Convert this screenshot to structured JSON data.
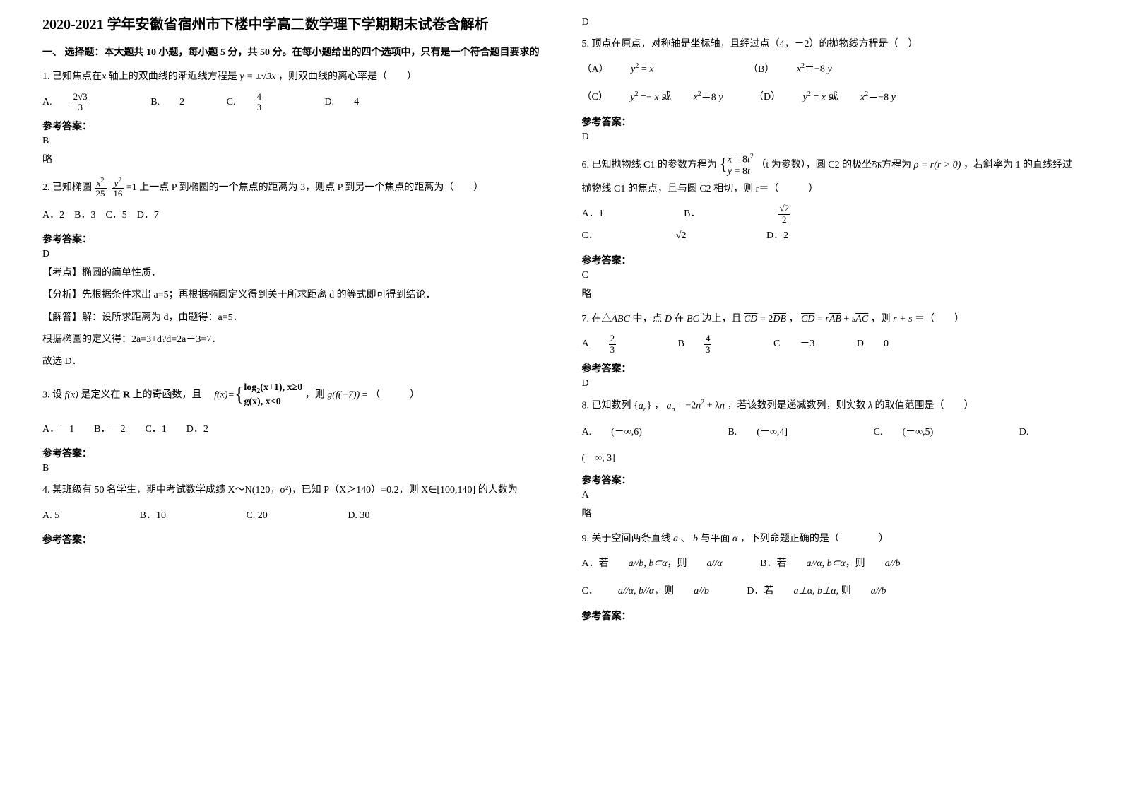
{
  "title": "2020-2021 学年安徽省宿州市下楼中学高二数学理下学期期末试卷含解析",
  "section1_header": "一、 选择题：本大题共 10 小题，每小题 5 分，共 50 分。在每小题给出的四个选项中，只有是一个符合题目要求的",
  "q1": {
    "stem_pre": "1. 已知焦点在",
    "stem_mid": "轴上的双曲线的渐近线方程是",
    "stem_post": "，则双曲线的离心率是（　　）",
    "optA": "A. ",
    "optB": "B. ",
    "optBv": "2",
    "optC": "C. ",
    "optD": "D. ",
    "optDv": "4",
    "ans": "B",
    "exp": "略"
  },
  "q2": {
    "stem_pre": "2. 已知椭圆",
    "stem_post": "=1 上一点 P 到椭圆的一个焦点的距离为 3，则点 P 到另一个焦点的距离为（　　）",
    "opts": "A．2　B．3　C．5　D．7",
    "ans": "D",
    "point": "【考点】椭圆的简单性质．",
    "analysis": "【分析】先根据条件求出 a=5；再根据椭圆定义得到关于所求距离 d 的等式即可得到结论．",
    "solve1": "【解答】解：设所求距离为 d，由题得：a=5．",
    "solve2": "根据椭圆的定义得：2a=3+d?d=2a－3=7．",
    "solve3": "故选 D．"
  },
  "q3": {
    "stem_pre": "3. 设",
    "stem_mid": "是定义在",
    "stem_mid2": "上的奇函数，且",
    "stem_post": "，则",
    "stem_end": "= （　　　）",
    "opts": "A．－1　　B．－2　　C．1　　D．2",
    "ans": "B"
  },
  "q4": {
    "stem": "4. 某班级有 50 名学生，期中考试数学成绩 X～N(120，σ²)，已知 P（X＞140）=0.2，则 X∈[100,140] 的人数为",
    "optA": "A. 5",
    "optB": "B．10",
    "optC": "C. 20",
    "optD": "D. 30",
    "ans": "D"
  },
  "q5": {
    "stem": "5. 顶点在原点，对称轴是坐标轴，且经过点（4，－2）的抛物线方程是（　）",
    "rowA_A": "（A）",
    "rowA_B": "（B）",
    "rowB_C": "（C）",
    "rowB_mid": "或",
    "rowB_D": "（D）",
    "rowB_mid2": "或",
    "ans": "D"
  },
  "q6": {
    "stem_pre": "6. 已知抛物线 C1 的参数方程为",
    "stem_mid": "（t 为参数），圆 C2 的极坐标方程为",
    "stem_post": "，若斜率为 1 的直线经过抛物线 C1 的焦点，且与圆 C2 相切，则 r＝（　　　）",
    "optA": "A．1",
    "optB": "B．",
    "optC": "C．",
    "optD": "D．2",
    "ans": "C",
    "exp": "略"
  },
  "q7": {
    "stem_pre": "7. 在△",
    "stem_mid1": "中，点",
    "stem_mid2": "在",
    "stem_mid3": "边上，且",
    "stem_mid4": "，",
    "stem_post": "，则",
    "stem_end": "＝（　　）",
    "optA": "A ",
    "optB": "B ",
    "optC": "C ",
    "optCv": "－3",
    "optD": "D ",
    "optDv": "0",
    "ans": "D"
  },
  "q8": {
    "stem_pre": "8. 已知数列",
    "stem_mid": "，",
    "stem_post": "，若该数列是递减数列，则实数",
    "stem_end": "的取值范围是（　　）",
    "optA": "A. ",
    "optAv": "(－∞,6)",
    "optB": "B. ",
    "optBv": "(－∞,4]",
    "optC": "C. ",
    "optCv": "(－∞,5)",
    "optD": "D.",
    "optDv": "(－∞, 3]",
    "ans": "A",
    "exp": "略"
  },
  "q9": {
    "stem_pre": "9. 关于空间两条直线",
    "stem_mid": "、",
    "stem_mid2": "与平面",
    "stem_post": "，下列命题正确的是（　　　　）",
    "optA_pre": "A．若",
    "optA_mid": "，则",
    "optB_pre": "B．若",
    "optB_mid": "，则",
    "optC_pre": "C．",
    "optC_mid": "，则",
    "optD_pre": "D．若",
    "optD_mid": "则",
    "ans_label": "参考答案："
  },
  "labels": {
    "answer": "参考答案："
  }
}
